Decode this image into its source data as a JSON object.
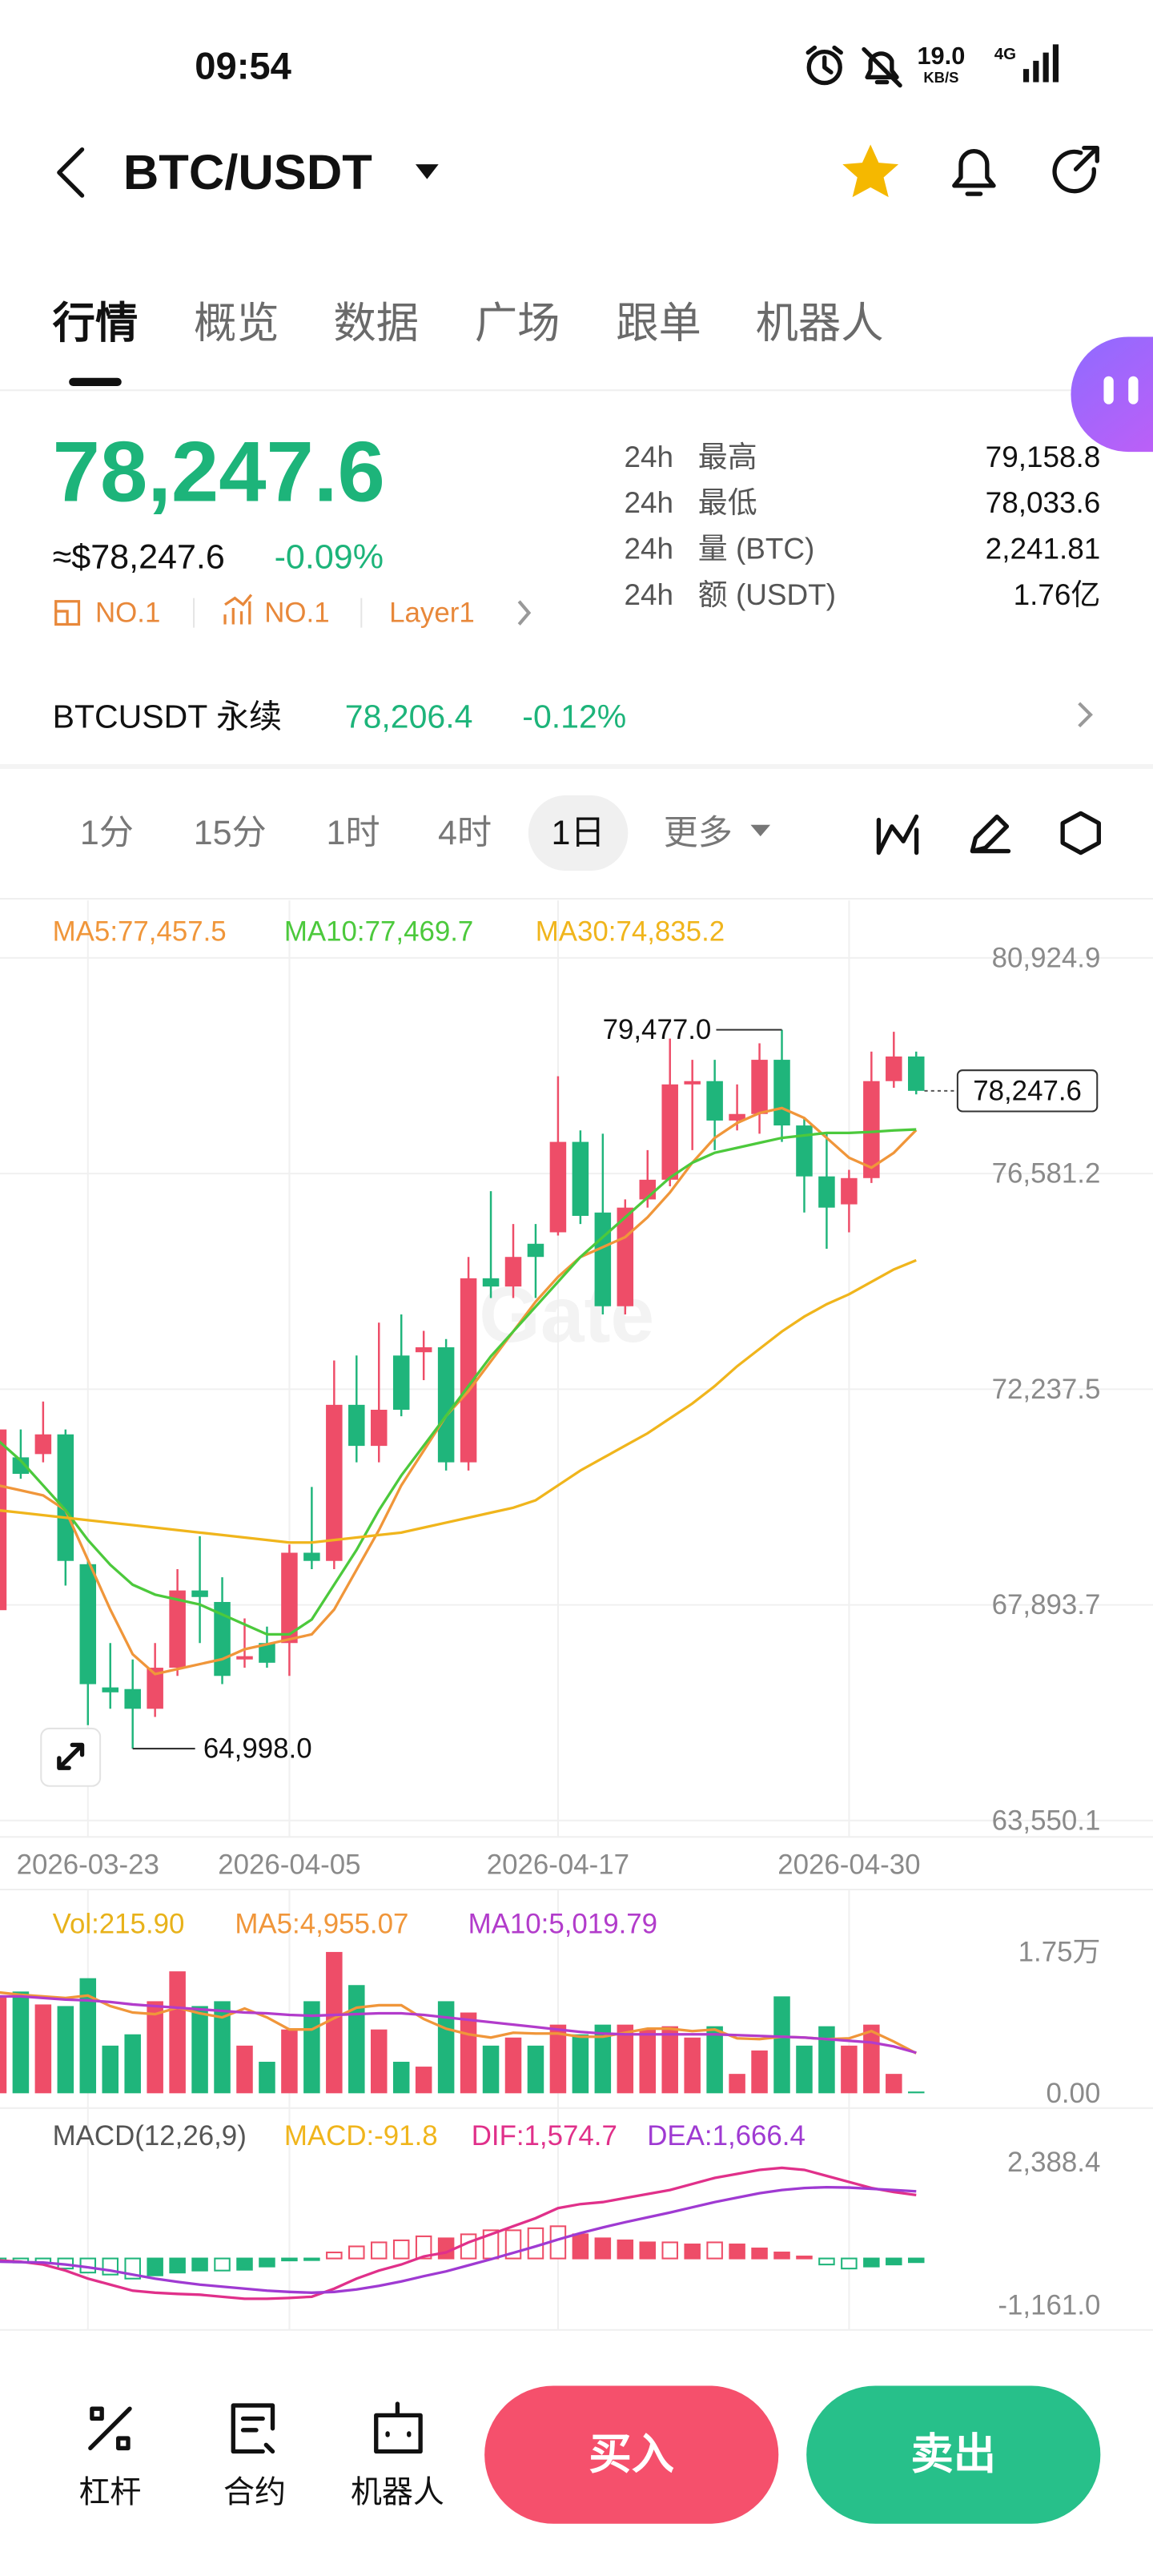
{
  "status": {
    "time": "09:54",
    "speed": "19.0",
    "speed_unit": "KB/S",
    "network": "4G"
  },
  "header": {
    "pair": "BTC/USDT"
  },
  "tabs": [
    "行情",
    "概览",
    "数据",
    "广场",
    "跟单",
    "机器人"
  ],
  "ticker": {
    "price": "78,247.6",
    "usd_price": "≈$78,247.6",
    "change": "-0.09%",
    "tags": [
      "NO.1",
      "NO.1",
      "Layer1"
    ]
  },
  "stats": [
    {
      "period": "24h",
      "label": "最高",
      "value": "79,158.8"
    },
    {
      "period": "24h",
      "label": "最低",
      "value": "78,033.6"
    },
    {
      "period": "24h",
      "label": "量 (BTC)",
      "value": "2,241.81"
    },
    {
      "period": "24h",
      "label": "额 (USDT)",
      "value": "1.76亿"
    }
  ],
  "perpetual": {
    "name": "BTCUSDT 永续",
    "price": "78,206.4",
    "change": "-0.12%"
  },
  "intervals": {
    "items": [
      "1分",
      "15分",
      "1时",
      "4时",
      "1日",
      "更多"
    ],
    "active": "1日"
  },
  "watermark": "Gate",
  "chart_data": [
    {
      "type": "candlestick",
      "up_color": "#ee4d68",
      "down_color": "#1fb57b",
      "grid": true,
      "categories": [
        null,
        null,
        null,
        null,
        "2026-03-23",
        null,
        null,
        null,
        null,
        null,
        null,
        null,
        null,
        "2026-04-05",
        null,
        null,
        null,
        null,
        null,
        null,
        null,
        null,
        null,
        null,
        null,
        "2026-04-17",
        null,
        null,
        null,
        null,
        null,
        null,
        null,
        null,
        null,
        null,
        null,
        null,
        "2026-04-30",
        null,
        null,
        null
      ],
      "open": [
        67787,
        70865,
        70931,
        71328,
        68713,
        66231,
        66198,
        65801,
        66628,
        68184,
        67952,
        66794,
        67125,
        67125,
        68944,
        68779,
        71923,
        71096,
        72916,
        72982,
        73082,
        70765,
        74472,
        74306,
        75167,
        75398,
        77219,
        75796,
        73909,
        76060,
        76457,
        78377,
        78443,
        77649,
        77781,
        78873,
        77550,
        76524,
        75961,
        76490,
        78443,
        78939
      ],
      "high": [
        71923,
        71427,
        71990,
        71427,
        68779,
        67125,
        66794,
        67125,
        68614,
        69276,
        68449,
        67621,
        67456,
        69110,
        70268,
        72817,
        72916,
        73578,
        73743,
        73413,
        73247,
        74902,
        76226,
        75564,
        75564,
        78542,
        77450,
        77384,
        76060,
        77053,
        79300,
        78873,
        78873,
        78377,
        79204,
        79477.0,
        77715,
        77384,
        76656,
        79038,
        79436,
        79038
      ],
      "low": [
        67125,
        70434,
        70765,
        68283,
        65471,
        65801,
        64998.0,
        65636,
        66463,
        67125,
        66297,
        66628,
        66628,
        66463,
        68614,
        68614,
        70765,
        70765,
        71692,
        72420,
        70600,
        70600,
        74075,
        74075,
        74075,
        75332,
        75564,
        73743,
        73743,
        75895,
        76325,
        77053,
        77053,
        77450,
        77384,
        77219,
        75796,
        75067,
        75398,
        76391,
        78310,
        78177
      ],
      "close": [
        71427,
        70533,
        71328,
        68779,
        66297,
        66132,
        65801,
        66628,
        68184,
        68052,
        66463,
        66860,
        66728,
        68944,
        68779,
        71923,
        71096,
        71824,
        71824,
        73082,
        70765,
        74472,
        74306,
        74902,
        74902,
        77219,
        75729,
        73909,
        75895,
        76457,
        78377,
        78443,
        77649,
        77781,
        78873,
        77550,
        76524,
        75895,
        76490,
        78443,
        78939,
        78247.6
      ],
      "series": [
        {
          "name": "MA5:77,457.5",
          "color": "#f0963a",
          "values": [
            70300,
            70200,
            70100,
            69800,
            68800,
            67800,
            66900,
            66500,
            66600,
            66700,
            66800,
            67000,
            67100,
            67200,
            67300,
            67800,
            68600,
            69400,
            70300,
            71000,
            71700,
            72200,
            72800,
            73400,
            74000,
            74500,
            74900,
            75100,
            75300,
            75700,
            76200,
            76800,
            77300,
            77600,
            77800,
            77900,
            77700,
            77300,
            76900,
            76700,
            77000,
            77457.5
          ]
        },
        {
          "name": "MA10:77,469.7",
          "color": "#4cc93c",
          "values": [
            71200,
            70800,
            70300,
            69800,
            69200,
            68700,
            68300,
            68100,
            68000,
            67900,
            67700,
            67500,
            67300,
            67300,
            67600,
            68300,
            69000,
            69800,
            70500,
            71100,
            71700,
            72300,
            72900,
            73400,
            73900,
            74400,
            74900,
            75300,
            75700,
            76100,
            76500,
            76800,
            77000,
            77100,
            77200,
            77300,
            77350,
            77400,
            77400,
            77420,
            77450,
            77469.7
          ]
        },
        {
          "name": "MA30:74,835.2",
          "color": "#f0b51c",
          "values": [
            69800,
            69750,
            69700,
            69650,
            69600,
            69550,
            69500,
            69450,
            69400,
            69350,
            69300,
            69250,
            69200,
            69150,
            69150,
            69200,
            69250,
            69300,
            69350,
            69450,
            69550,
            69650,
            69750,
            69850,
            70000,
            70300,
            70600,
            70850,
            71100,
            71350,
            71650,
            71950,
            72300,
            72700,
            73050,
            73400,
            73700,
            73950,
            74150,
            74400,
            74650,
            74835.2
          ]
        }
      ],
      "ylim": [
        63550.1,
        80924.9
      ],
      "yticks": [
        {
          "value": 80924.9,
          "label": "80,924.9"
        },
        {
          "value": 76581.2,
          "label": "76,581.2"
        },
        {
          "value": 72237.5,
          "label": "72,237.5"
        },
        {
          "value": 67893.7,
          "label": "67,893.7"
        },
        {
          "value": 63550.1,
          "label": "63,550.1"
        }
      ],
      "high_label": "79,477.0",
      "low_label": "64,998.0",
      "last_price_label": "78,247.6"
    },
    {
      "type": "volume",
      "up_color": "#ee4d68",
      "down_color": "#1fb57b",
      "grid": false,
      "series": [
        {
          "name": "Vol:215.90",
          "color": "#e8b21a",
          "style": "bar",
          "values": [
            12000,
            12600,
            11000,
            10800,
            14250,
            5900,
            7300,
            11400,
            15100,
            10800,
            11400,
            5900,
            3900,
            7900,
            11400,
            17500,
            13400,
            7900,
            3900,
            3300,
            11400,
            10000,
            5900,
            6900,
            5900,
            8500,
            7300,
            8500,
            8500,
            7900,
            8300,
            6900,
            8300,
            2400,
            5300,
            12000,
            5900,
            8300,
            5900,
            8500,
            2400,
            215.9
          ]
        },
        {
          "name": "MA5:4,955.07",
          "color": "#f0963a",
          "style": "line",
          "values": [
            12500,
            12200,
            12000,
            11800,
            12100,
            10800,
            10000,
            9800,
            10600,
            9900,
            9400,
            10500,
            9400,
            7900,
            7900,
            9300,
            10600,
            10900,
            10900,
            9200,
            8000,
            7300,
            6900,
            7500,
            7400,
            7400,
            7000,
            7000,
            7500,
            8000,
            8000,
            7700,
            7900,
            6800,
            6700,
            7000,
            6900,
            6700,
            6800,
            7700,
            6400,
            4955.07
          ]
        },
        {
          "name": "MA10:5,019.79",
          "color": "#b23ccb",
          "style": "line",
          "values": [
            12000,
            12000,
            11800,
            11600,
            11500,
            11300,
            11000,
            10800,
            10600,
            10400,
            10200,
            10000,
            9900,
            9700,
            9600,
            9700,
            9800,
            9900,
            9900,
            9700,
            9400,
            9100,
            8800,
            8500,
            8200,
            7900,
            7600,
            7400,
            7300,
            7300,
            7300,
            7300,
            7300,
            7200,
            7100,
            7000,
            6900,
            6700,
            6500,
            6300,
            5800,
            5019.79
          ]
        }
      ],
      "ylim": [
        0,
        17500
      ],
      "yticks": [
        {
          "value": 17500,
          "label": "1.75万"
        },
        {
          "value": 0,
          "label": "0.00"
        }
      ]
    },
    {
      "type": "macd",
      "title": "MACD(12,26,9)",
      "up_color": "#ee4d68",
      "down_color": "#1fb57b",
      "grid": false,
      "series": [
        {
          "name": "MACD:-91.8",
          "color": "#f0b51c",
          "style": "histogram",
          "values": [
            -80,
            -100,
            -120,
            -250,
            -350,
            -400,
            -500,
            -420,
            -350,
            -300,
            -300,
            -280,
            -200,
            -50,
            -30,
            150,
            300,
            400,
            450,
            550,
            500,
            600,
            700,
            700,
            750,
            800,
            600,
            500,
            450,
            400,
            400,
            350,
            400,
            350,
            250,
            150,
            50,
            -150,
            -250,
            -200,
            -150,
            -91.8
          ]
        },
        {
          "name": "DIF:1,574.7",
          "color": "#e0308a",
          "style": "line",
          "values": [
            -50,
            -80,
            -150,
            -300,
            -500,
            -650,
            -800,
            -850,
            -880,
            -900,
            -950,
            -1000,
            -1000,
            -980,
            -950,
            -750,
            -500,
            -300,
            -150,
            50,
            150,
            400,
            600,
            800,
            1000,
            1250,
            1350,
            1400,
            1500,
            1600,
            1700,
            1850,
            2000,
            2100,
            2200,
            2250,
            2200,
            2050,
            1900,
            1750,
            1650,
            1574.7
          ]
        },
        {
          "name": "DEA:1,666.4",
          "color": "#9f3ad2",
          "style": "line",
          "values": [
            -80,
            -90,
            -100,
            -150,
            -220,
            -300,
            -400,
            -500,
            -580,
            -650,
            -700,
            -750,
            -800,
            -830,
            -850,
            -830,
            -770,
            -680,
            -570,
            -440,
            -320,
            -170,
            -20,
            140,
            300,
            470,
            630,
            770,
            900,
            1020,
            1140,
            1270,
            1400,
            1510,
            1620,
            1700,
            1750,
            1770,
            1760,
            1730,
            1700,
            1666.4
          ]
        }
      ],
      "ylim": [
        -1161.0,
        2388.4
      ],
      "yticks": [
        {
          "value": 2388.4,
          "label": "2,388.4"
        },
        {
          "value": -1161.0,
          "label": "-1,161.0"
        }
      ]
    }
  ],
  "bottom": {
    "nav": [
      "杠杆",
      "合约",
      "机器人"
    ],
    "buy": "买入",
    "sell": "卖出"
  }
}
